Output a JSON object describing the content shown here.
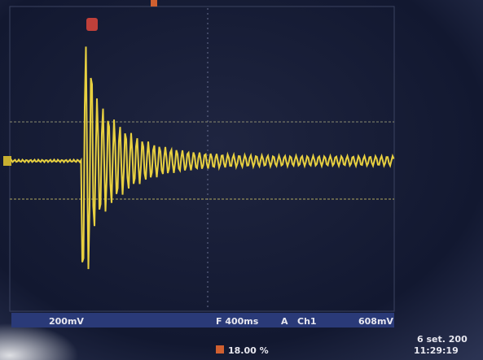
{
  "screen": {
    "volts_per_div": "200mV",
    "time_per_div": "F 400ms",
    "trigger_mode": "A",
    "trigger_source": "Ch1",
    "trigger_level": "608mV",
    "date": "6 set. 200",
    "time": "11:29:19",
    "trigger_position": "18.00 %"
  }
}
